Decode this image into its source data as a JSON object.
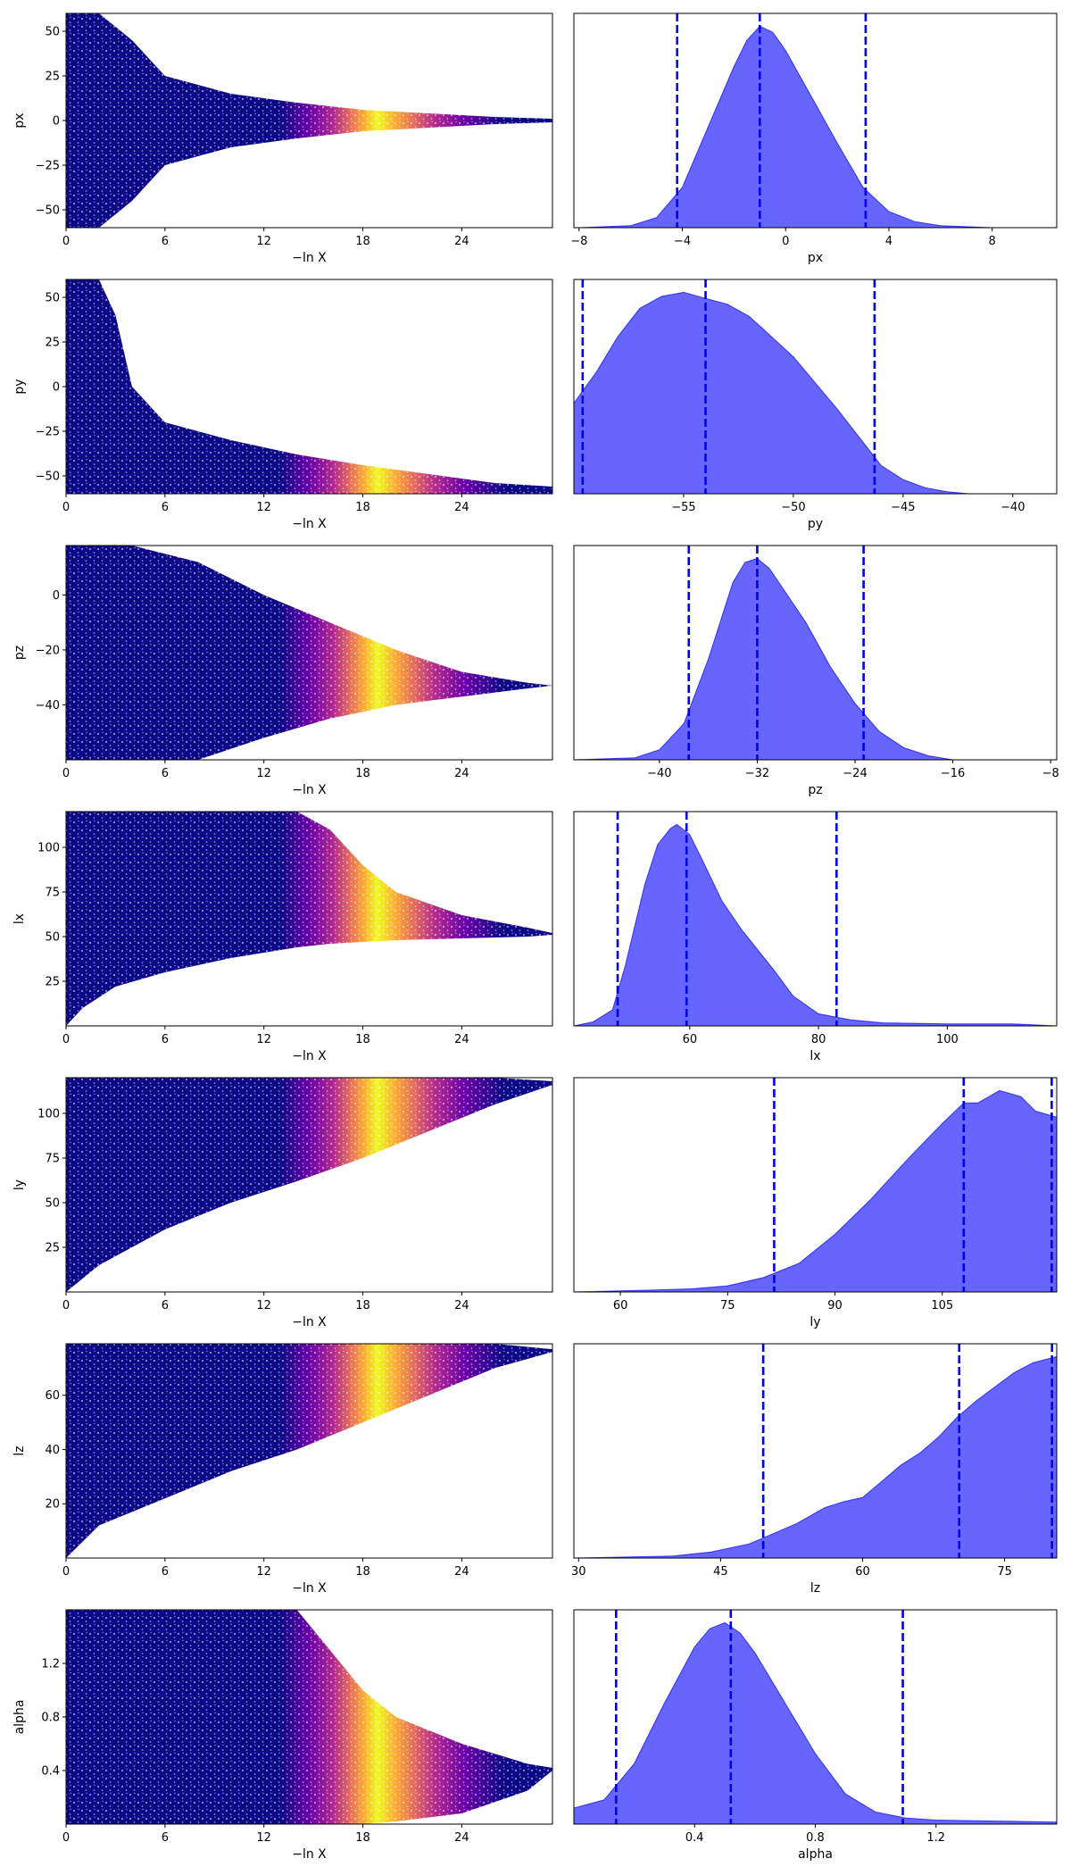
{
  "chart_data": [
    {
      "panel": "trace",
      "param": "px",
      "type": "scatter",
      "xlabel": "−ln X",
      "ylabel": "px",
      "xlim": [
        0,
        29.5
      ],
      "ylim": [
        -60,
        60
      ],
      "xticks": [
        0,
        6,
        12,
        18,
        24
      ],
      "yticks": [
        -50,
        -25,
        0,
        25,
        50
      ],
      "envelope": {
        "x": [
          0,
          2,
          4,
          6,
          10,
          14,
          18,
          22,
          26,
          29.5
        ],
        "upper": [
          60,
          60,
          45,
          25,
          15,
          10,
          6,
          4,
          2,
          1
        ],
        "lower": [
          -60,
          -60,
          -45,
          -25,
          -15,
          -10,
          -6,
          -4,
          -2,
          -1
        ],
        "center": [
          0,
          0,
          0,
          0,
          0,
          0,
          0,
          0,
          0,
          0
        ]
      },
      "fade_x": 12
    },
    {
      "panel": "kde",
      "param": "px",
      "type": "area",
      "xlabel": "px",
      "xlim": [
        -8.2,
        10.5
      ],
      "xticks": [
        -8,
        -4,
        0,
        4,
        8
      ],
      "x": [
        -8,
        -6,
        -5,
        -4,
        -3,
        -2,
        -1.5,
        -1,
        -0.5,
        0,
        1,
        2,
        3,
        4,
        5,
        6,
        8,
        10.5
      ],
      "density": [
        0,
        0.01,
        0.05,
        0.2,
        0.5,
        0.8,
        0.93,
        1,
        0.97,
        0.88,
        0.65,
        0.42,
        0.2,
        0.08,
        0.03,
        0.01,
        0,
        0
      ],
      "quantiles": [
        -4.2,
        -1.0,
        3.1
      ]
    },
    {
      "panel": "trace",
      "param": "py",
      "type": "scatter",
      "xlabel": "−ln X",
      "ylabel": "py",
      "xlim": [
        0,
        29.5
      ],
      "ylim": [
        -60,
        60
      ],
      "xticks": [
        0,
        6,
        12,
        18,
        24
      ],
      "yticks": [
        -50,
        -25,
        0,
        25,
        50
      ],
      "envelope": {
        "x": [
          0,
          2,
          3,
          4,
          6,
          10,
          14,
          18,
          22,
          26,
          29.5
        ],
        "upper": [
          60,
          60,
          40,
          0,
          -20,
          -30,
          -38,
          -44,
          -49,
          -54,
          -56
        ],
        "lower": [
          -60,
          -60,
          -60,
          -60,
          -60,
          -60,
          -60,
          -60,
          -60,
          -60,
          -60
        ],
        "center": [
          -30,
          -35,
          -40,
          -45,
          -50,
          -53,
          -55,
          -55,
          -56,
          -57,
          -58
        ]
      },
      "fade_x": 12
    },
    {
      "panel": "kde",
      "param": "py",
      "type": "area",
      "xlabel": "py",
      "xlim": [
        -60,
        -38
      ],
      "xticks": [
        -55,
        -50,
        -45,
        -40
      ],
      "x": [
        -60,
        -59,
        -58,
        -57,
        -56,
        -55,
        -54,
        -53,
        -52,
        -51,
        -50,
        -49,
        -48,
        -47,
        -46,
        -45,
        -44,
        -43,
        -42,
        -38
      ],
      "density": [
        0.45,
        0.6,
        0.78,
        0.92,
        0.98,
        1,
        0.97,
        0.94,
        0.88,
        0.78,
        0.68,
        0.55,
        0.42,
        0.28,
        0.14,
        0.07,
        0.03,
        0.01,
        0,
        0
      ],
      "quantiles": [
        -59.6,
        -54.0,
        -46.3
      ]
    },
    {
      "panel": "trace",
      "param": "pz",
      "type": "scatter",
      "xlabel": "−ln X",
      "ylabel": "pz",
      "xlim": [
        0,
        29.5
      ],
      "ylim": [
        -60,
        18
      ],
      "xticks": [
        0,
        6,
        12,
        18,
        24
      ],
      "yticks": [
        -40,
        -20,
        0
      ],
      "envelope": {
        "x": [
          0,
          4,
          8,
          12,
          16,
          20,
          24,
          28,
          29.5
        ],
        "upper": [
          18,
          18,
          12,
          0,
          -10,
          -20,
          -28,
          -32,
          -33
        ],
        "lower": [
          -60,
          -60,
          -60,
          -52,
          -45,
          -40,
          -37,
          -34,
          -33
        ],
        "center": [
          -30,
          -30,
          -30,
          -30,
          -32,
          -32,
          -33,
          -33,
          -33
        ]
      },
      "fade_x": 12
    },
    {
      "panel": "kde",
      "param": "pz",
      "type": "area",
      "xlabel": "pz",
      "xlim": [
        -47,
        -7.5
      ],
      "xticks": [
        -40,
        -32,
        -24,
        -16,
        -8
      ],
      "x": [
        -47,
        -42,
        -40,
        -38,
        -36,
        -34,
        -33,
        -32,
        -31,
        -30,
        -28,
        -26,
        -24,
        -22,
        -20,
        -18,
        -16,
        -7.5
      ],
      "density": [
        0,
        0.01,
        0.05,
        0.18,
        0.5,
        0.88,
        0.98,
        1,
        0.95,
        0.86,
        0.68,
        0.46,
        0.28,
        0.14,
        0.06,
        0.02,
        0,
        0
      ],
      "quantiles": [
        -37.6,
        -32.0,
        -23.3
      ]
    },
    {
      "panel": "trace",
      "param": "lx",
      "type": "scatter",
      "xlabel": "−ln X",
      "ylabel": "lx",
      "xlim": [
        0,
        29.5
      ],
      "ylim": [
        0,
        120
      ],
      "xticks": [
        0,
        6,
        12,
        18,
        24
      ],
      "yticks": [
        25,
        50,
        75,
        100
      ],
      "envelope": {
        "x": [
          0,
          1,
          3,
          6,
          10,
          14,
          16,
          18,
          20,
          24,
          28,
          29.5
        ],
        "upper": [
          120,
          120,
          120,
          120,
          120,
          120,
          110,
          90,
          75,
          62,
          55,
          52
        ],
        "lower": [
          0,
          10,
          22,
          30,
          38,
          44,
          46,
          47,
          48,
          49,
          50,
          51
        ],
        "center": [
          75,
          75,
          75,
          75,
          75,
          70,
          62,
          58,
          55,
          53,
          52,
          52
        ]
      },
      "fade_x": 12
    },
    {
      "panel": "kde",
      "param": "lx",
      "type": "area",
      "xlabel": "lx",
      "xlim": [
        42,
        117
      ],
      "xticks": [
        60,
        80,
        100
      ],
      "x": [
        42,
        45,
        48,
        50,
        53,
        55,
        57,
        58,
        60,
        62,
        65,
        68,
        70,
        73,
        76,
        80,
        85,
        90,
        100,
        110,
        117
      ],
      "density": [
        0,
        0.02,
        0.08,
        0.3,
        0.7,
        0.9,
        0.98,
        1,
        0.95,
        0.82,
        0.62,
        0.48,
        0.4,
        0.28,
        0.15,
        0.06,
        0.03,
        0.015,
        0.01,
        0.01,
        0
      ],
      "quantiles": [
        48.8,
        59.5,
        82.8
      ]
    },
    {
      "panel": "trace",
      "param": "ly",
      "type": "scatter",
      "xlabel": "−ln X",
      "ylabel": "ly",
      "xlim": [
        0,
        29.5
      ],
      "ylim": [
        0,
        120
      ],
      "xticks": [
        0,
        6,
        12,
        18,
        24
      ],
      "yticks": [
        25,
        50,
        75,
        100
      ],
      "envelope": {
        "x": [
          0,
          2,
          6,
          10,
          14,
          18,
          22,
          26,
          29.5
        ],
        "upper": [
          120,
          120,
          120,
          120,
          120,
          120,
          120,
          120,
          118
        ],
        "lower": [
          0,
          15,
          35,
          50,
          62,
          75,
          90,
          105,
          116
        ],
        "center": [
          70,
          75,
          85,
          92,
          100,
          105,
          110,
          115,
          118
        ]
      },
      "fade_x": 12
    },
    {
      "panel": "kde",
      "param": "ly",
      "type": "area",
      "xlabel": "ly",
      "xlim": [
        53.5,
        121
      ],
      "xticks": [
        60,
        75,
        90,
        105
      ],
      "x": [
        53.5,
        60,
        65,
        70,
        75,
        80,
        85,
        90,
        95,
        100,
        105,
        108,
        110,
        113,
        116,
        118,
        121
      ],
      "density": [
        0,
        0.005,
        0.01,
        0.015,
        0.03,
        0.07,
        0.14,
        0.28,
        0.45,
        0.64,
        0.82,
        0.92,
        0.92,
        0.98,
        0.95,
        0.88,
        0.85
      ],
      "quantiles": [
        81.5,
        108.0,
        120.3
      ]
    },
    {
      "panel": "trace",
      "param": "lz",
      "type": "scatter",
      "xlabel": "−ln X",
      "ylabel": "lz",
      "xlim": [
        0,
        29.5
      ],
      "ylim": [
        0,
        79
      ],
      "xticks": [
        0,
        6,
        12,
        18,
        24
      ],
      "yticks": [
        20,
        40,
        60
      ],
      "envelope": {
        "x": [
          0,
          2,
          6,
          10,
          14,
          18,
          22,
          26,
          29.5
        ],
        "upper": [
          79,
          79,
          79,
          79,
          79,
          79,
          79,
          79,
          77
        ],
        "lower": [
          0,
          12,
          22,
          32,
          40,
          50,
          60,
          70,
          76
        ],
        "center": [
          45,
          50,
          55,
          60,
          65,
          68,
          72,
          75,
          77
        ]
      },
      "fade_x": 12
    },
    {
      "panel": "kde",
      "param": "lz",
      "type": "area",
      "xlabel": "lz",
      "xlim": [
        29.5,
        80.5
      ],
      "xticks": [
        30,
        45,
        60,
        75
      ],
      "x": [
        29.5,
        35,
        40,
        44,
        48,
        50,
        53,
        56,
        58,
        60,
        62,
        64,
        66,
        68,
        70,
        72,
        74,
        76,
        78,
        80.5
      ],
      "density": [
        0,
        0.005,
        0.01,
        0.03,
        0.07,
        0.11,
        0.17,
        0.25,
        0.28,
        0.3,
        0.38,
        0.46,
        0.52,
        0.6,
        0.7,
        0.78,
        0.85,
        0.92,
        0.97,
        1
      ],
      "quantiles": [
        49.5,
        70.2,
        80.0
      ]
    },
    {
      "panel": "trace",
      "param": "alpha",
      "type": "scatter",
      "xlabel": "−ln X",
      "ylabel": "alpha",
      "xlim": [
        0,
        29.5
      ],
      "ylim": [
        0,
        1.6
      ],
      "xticks": [
        0,
        6,
        12,
        18,
        24
      ],
      "yticks": [
        0.4,
        0.8,
        1.2
      ],
      "envelope": {
        "x": [
          0,
          4,
          8,
          12,
          14,
          16,
          18,
          20,
          24,
          28,
          29.5
        ],
        "upper": [
          1.6,
          1.6,
          1.6,
          1.6,
          1.6,
          1.3,
          1.0,
          0.8,
          0.6,
          0.45,
          0.42
        ],
        "lower": [
          0,
          0,
          0,
          0,
          0,
          0,
          0,
          0.02,
          0.08,
          0.25,
          0.4
        ],
        "center": [
          0.8,
          0.8,
          0.8,
          0.8,
          0.7,
          0.55,
          0.45,
          0.42,
          0.4,
          0.4,
          0.4
        ]
      },
      "fade_x": 12
    },
    {
      "panel": "kde",
      "param": "alpha",
      "type": "area",
      "xlabel": "alpha",
      "xlim": [
        0,
        1.6
      ],
      "xticks": [
        0.4,
        0.8,
        1.2
      ],
      "x": [
        0,
        0.1,
        0.2,
        0.3,
        0.4,
        0.45,
        0.5,
        0.55,
        0.6,
        0.7,
        0.8,
        0.9,
        1.0,
        1.1,
        1.2,
        1.4,
        1.6
      ],
      "density": [
        0.08,
        0.12,
        0.3,
        0.6,
        0.88,
        0.97,
        1,
        0.95,
        0.85,
        0.6,
        0.35,
        0.15,
        0.06,
        0.03,
        0.02,
        0.015,
        0.01
      ],
      "quantiles": [
        0.14,
        0.52,
        1.09
      ]
    }
  ]
}
